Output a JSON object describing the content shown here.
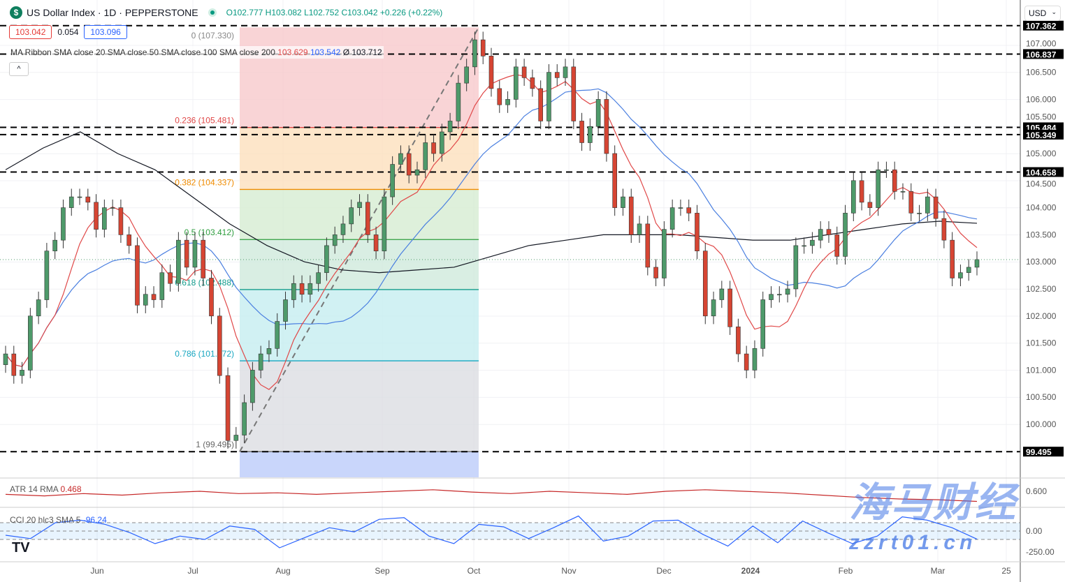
{
  "header": {
    "symbol": "US Dollar Index · 1D · PEPPERSTONE",
    "logo": "$",
    "open": "O102.777",
    "high": "H103.082",
    "low": "L102.752",
    "close": "C103.042",
    "change": "+0.226 (+0.22%)"
  },
  "boxes": {
    "bid": "103.042",
    "spread": "0.054",
    "ask": "103.096"
  },
  "ma_legend": {
    "label": "MA Ribbon SMA close 20 SMA close 50 SMA close 100 SMA close 200",
    "v1": "103.629",
    "v2": "103.542",
    "v3": "Ø 103.712"
  },
  "currency": "USD",
  "colors": {
    "up": "#4e9a6a",
    "down": "#d64533",
    "sma20": "#e04848",
    "sma50": "#4a7fe0",
    "sma200": "#131722",
    "atr": "#c62828",
    "cci": "#2962ff"
  },
  "chart_data": {
    "type": "candlestick",
    "ylim": [
      99.0,
      107.7
    ],
    "y_ticks": [
      "100.000",
      "100.500",
      "101.000",
      "101.500",
      "102.000",
      "102.500",
      "103.000",
      "103.500",
      "104.000",
      "104.500",
      "105.000",
      "105.500",
      "106.000",
      "106.500",
      "107.000"
    ],
    "x_ticks": [
      "Jun",
      "Jul",
      "Aug",
      "Sep",
      "Oct",
      "Nov",
      "Dec",
      "2024",
      "Feb",
      "Mar",
      "25"
    ],
    "closes": [
      101.3,
      100.9,
      101.0,
      102.0,
      102.3,
      103.2,
      103.4,
      104.0,
      104.2,
      104.2,
      104.1,
      103.6,
      104.0,
      104.0,
      103.5,
      103.3,
      102.2,
      102.4,
      102.3,
      102.8,
      102.6,
      103.4,
      102.9,
      103.4,
      102.7,
      102.0,
      100.9,
      99.7,
      99.8,
      100.4,
      101.0,
      101.3,
      101.4,
      101.9,
      102.3,
      102.6,
      102.4,
      102.6,
      102.8,
      103.3,
      103.5,
      103.7,
      104.0,
      104.1,
      103.5,
      103.2,
      104.2,
      104.8,
      105.0,
      104.6,
      104.7,
      105.2,
      105.0,
      105.4,
      105.6,
      106.3,
      106.6,
      107.1,
      106.8,
      106.2,
      105.9,
      106.0,
      106.6,
      106.4,
      106.2,
      105.6,
      106.5,
      106.4,
      106.6,
      105.6,
      105.2,
      105.5,
      106.0,
      105.0,
      104.0,
      104.2,
      103.5,
      103.7,
      102.9,
      102.7,
      103.6,
      104.0,
      104.0,
      103.9,
      103.2,
      102.0,
      102.3,
      102.5,
      101.8,
      101.3,
      101.0,
      101.4,
      102.3,
      102.4,
      102.4,
      102.5,
      103.3,
      103.3,
      103.4,
      103.6,
      103.5,
      103.1,
      103.9,
      104.5,
      104.1,
      104.0,
      104.7,
      104.7,
      104.3,
      104.3,
      103.9,
      103.9,
      104.2,
      103.8,
      103.4,
      102.7,
      102.8,
      102.9,
      103.042
    ],
    "sma200": [
      104.7,
      105.1,
      105.4,
      105.0,
      104.7,
      104.2,
      103.7,
      103.3,
      103.0,
      102.85,
      102.8,
      102.85,
      102.9,
      103.1,
      103.3,
      103.4,
      103.5,
      103.5,
      103.5,
      103.45,
      103.4,
      103.4,
      103.5,
      103.6,
      103.7,
      103.75,
      103.712
    ],
    "horizontal_levels": [
      "107.362",
      "106.837",
      "105.484",
      "105.349",
      "104.658",
      "99.495"
    ],
    "fib": [
      {
        "level": "0 (107.330)",
        "price": 107.33,
        "fill": "#f8c9cc"
      },
      {
        "level": "0.236 (105.481)",
        "price": 105.481,
        "fill": "#fde0bd",
        "color": "#e04848"
      },
      {
        "level": "0.382 (104.337)",
        "price": 104.337,
        "fill": "#d6ecd2",
        "color": "#f08c00"
      },
      {
        "level": "0.5 (103.412)",
        "price": 103.412,
        "fill": "#cfeadc",
        "color": "#2e9e3e"
      },
      {
        "level": "0.618 (102.488)",
        "price": 102.488,
        "fill": "#c5eef0",
        "color": "#139c8c"
      },
      {
        "level": "0.786 (101.172)",
        "price": 101.172,
        "fill": "#dcdde2",
        "color": "#17a6c0"
      },
      {
        "level": "1 (99.495)",
        "price": 99.495,
        "fill": "#c9d6fb",
        "color": "#666"
      }
    ],
    "atr": {
      "label": "ATR 14 RMA",
      "value": "0.468",
      "tick": "0.600",
      "values": [
        0.56,
        0.54,
        0.57,
        0.55,
        0.58,
        0.6,
        0.57,
        0.58,
        0.56,
        0.58,
        0.6,
        0.62,
        0.59,
        0.57,
        0.6,
        0.58,
        0.56,
        0.6,
        0.62,
        0.6,
        0.58,
        0.55,
        0.52,
        0.5,
        0.49,
        0.468
      ]
    },
    "cci": {
      "label": "CCI 20 hlc3 SMA 5",
      "value": "-96.24",
      "ticks": [
        "0.00",
        "-250.00"
      ],
      "values": [
        -50,
        -90,
        100,
        130,
        80,
        -20,
        -150,
        -60,
        -100,
        60,
        20,
        -200,
        -80,
        40,
        -10,
        140,
        160,
        -60,
        -150,
        80,
        50,
        -90,
        40,
        180,
        -120,
        -60,
        120,
        130,
        -40,
        -180,
        60,
        -140,
        120,
        -20,
        -150,
        -60,
        170,
        130,
        40,
        -96.24
      ]
    }
  },
  "watermark": {
    "line1": "海马财经",
    "line2": "zzrt01.cn"
  }
}
